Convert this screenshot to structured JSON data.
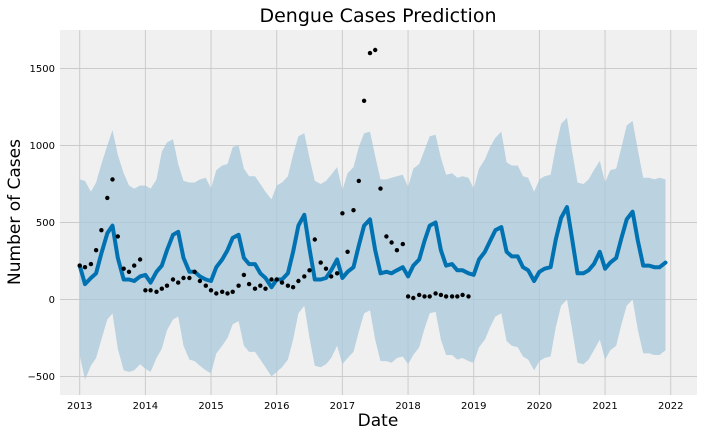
{
  "chart_data": {
    "type": "line",
    "title": "Dengue Cases Prediction",
    "xlabel": "Date",
    "ylabel": "Number of Cases",
    "xlim": [
      2012.7,
      2022.4
    ],
    "ylim": [
      -620,
      1750
    ],
    "x_ticks": [
      {
        "value": 2013,
        "label": "2013"
      },
      {
        "value": 2014,
        "label": "2014"
      },
      {
        "value": 2015,
        "label": "2015"
      },
      {
        "value": 2016,
        "label": "2016"
      },
      {
        "value": 2017,
        "label": "2017"
      },
      {
        "value": 2018,
        "label": "2018"
      },
      {
        "value": 2019,
        "label": "2019"
      },
      {
        "value": 2020,
        "label": "2020"
      },
      {
        "value": 2021,
        "label": "2021"
      },
      {
        "value": 2022,
        "label": "2022"
      }
    ],
    "y_ticks": [
      {
        "value": -500,
        "label": "−500"
      },
      {
        "value": 0,
        "label": "0"
      },
      {
        "value": 500,
        "label": "500"
      },
      {
        "value": 1000,
        "label": "1000"
      },
      {
        "value": 1500,
        "label": "1500"
      }
    ],
    "grid": true,
    "colors": {
      "background": "#f0f0f0",
      "grid": "#cbcbcb",
      "forecast_line": "#0072b2",
      "interval_band": "#a9c8db",
      "observed_points": "#000000"
    },
    "forecast": {
      "x": [
        2013.0,
        2013.08,
        2013.17,
        2013.25,
        2013.33,
        2013.42,
        2013.5,
        2013.58,
        2013.67,
        2013.75,
        2013.83,
        2013.92,
        2014.0,
        2014.08,
        2014.17,
        2014.25,
        2014.33,
        2014.42,
        2014.5,
        2014.58,
        2014.67,
        2014.75,
        2014.83,
        2014.92,
        2015.0,
        2015.08,
        2015.17,
        2015.25,
        2015.33,
        2015.42,
        2015.5,
        2015.58,
        2015.67,
        2015.75,
        2015.83,
        2015.92,
        2016.0,
        2016.08,
        2016.17,
        2016.25,
        2016.33,
        2016.42,
        2016.5,
        2016.58,
        2016.67,
        2016.75,
        2016.83,
        2016.92,
        2017.0,
        2017.08,
        2017.17,
        2017.25,
        2017.33,
        2017.42,
        2017.5,
        2017.58,
        2017.67,
        2017.75,
        2017.83,
        2017.92,
        2018.0,
        2018.08,
        2018.17,
        2018.25,
        2018.33,
        2018.42,
        2018.5,
        2018.58,
        2018.67,
        2018.75,
        2018.83,
        2018.92,
        2019.0,
        2019.08,
        2019.17,
        2019.25,
        2019.33,
        2019.42,
        2019.5,
        2019.58,
        2019.67,
        2019.75,
        2019.83,
        2019.92,
        2020.0,
        2020.08,
        2020.17,
        2020.25,
        2020.33,
        2020.42,
        2020.5,
        2020.58,
        2020.67,
        2020.75,
        2020.83,
        2020.92,
        2021.0,
        2021.08,
        2021.17,
        2021.25,
        2021.33,
        2021.42,
        2021.5,
        2021.58,
        2021.67,
        2021.75,
        2021.83,
        2021.92
      ],
      "yhat": [
        220,
        100,
        140,
        170,
        300,
        430,
        480,
        270,
        130,
        130,
        120,
        150,
        160,
        110,
        180,
        220,
        320,
        420,
        440,
        270,
        180,
        180,
        150,
        130,
        120,
        210,
        260,
        320,
        400,
        420,
        270,
        230,
        230,
        170,
        140,
        80,
        130,
        130,
        170,
        310,
        480,
        550,
        330,
        130,
        130,
        140,
        190,
        260,
        140,
        180,
        210,
        350,
        480,
        520,
        320,
        170,
        180,
        170,
        190,
        210,
        150,
        220,
        260,
        380,
        480,
        500,
        320,
        220,
        230,
        190,
        190,
        170,
        160,
        260,
        310,
        380,
        450,
        470,
        310,
        280,
        280,
        210,
        190,
        120,
        180,
        200,
        210,
        390,
        530,
        600,
        390,
        170,
        170,
        190,
        230,
        310,
        200,
        240,
        270,
        400,
        520,
        570,
        380,
        220,
        220,
        210,
        210,
        240
      ],
      "yhat_upper": [
        780,
        770,
        700,
        760,
        880,
        1000,
        1100,
        940,
        820,
        740,
        720,
        740,
        740,
        720,
        780,
        960,
        1020,
        1040,
        880,
        770,
        760,
        760,
        780,
        790,
        720,
        840,
        870,
        880,
        990,
        1000,
        850,
        800,
        800,
        750,
        700,
        650,
        740,
        760,
        800,
        940,
        1060,
        1080,
        920,
        770,
        750,
        770,
        810,
        860,
        710,
        820,
        860,
        990,
        1080,
        1090,
        930,
        780,
        780,
        790,
        800,
        810,
        730,
        850,
        880,
        970,
        1060,
        1070,
        920,
        810,
        820,
        790,
        800,
        790,
        720,
        850,
        910,
        990,
        1050,
        1090,
        890,
        870,
        870,
        800,
        790,
        700,
        780,
        800,
        810,
        990,
        1140,
        1180,
        960,
        760,
        750,
        780,
        840,
        900,
        760,
        840,
        850,
        990,
        1130,
        1160,
        970,
        790,
        790,
        780,
        790,
        780
      ],
      "yhat_lower": [
        -360,
        -520,
        -430,
        -380,
        -260,
        -130,
        -90,
        -320,
        -460,
        -470,
        -460,
        -420,
        -450,
        -470,
        -380,
        -320,
        -200,
        -130,
        -110,
        -300,
        -390,
        -400,
        -430,
        -460,
        -480,
        -350,
        -300,
        -250,
        -160,
        -140,
        -300,
        -340,
        -340,
        -390,
        -440,
        -500,
        -470,
        -440,
        -390,
        -260,
        -90,
        -40,
        -250,
        -430,
        -440,
        -420,
        -380,
        -300,
        -420,
        -380,
        -340,
        -210,
        -90,
        -70,
        -260,
        -400,
        -400,
        -410,
        -380,
        -370,
        -420,
        -360,
        -310,
        -190,
        -90,
        -80,
        -260,
        -360,
        -360,
        -390,
        -380,
        -400,
        -410,
        -310,
        -260,
        -180,
        -110,
        -90,
        -270,
        -300,
        -310,
        -370,
        -390,
        -460,
        -400,
        -380,
        -370,
        -180,
        -40,
        0,
        -200,
        -410,
        -420,
        -390,
        -330,
        -260,
        -390,
        -330,
        -300,
        -160,
        -40,
        0,
        -200,
        -350,
        -350,
        -360,
        -360,
        -330
      ]
    },
    "observed": {
      "x": [
        2013.0,
        2013.08,
        2013.17,
        2013.25,
        2013.33,
        2013.42,
        2013.5,
        2013.58,
        2013.67,
        2013.75,
        2013.83,
        2013.92,
        2014.0,
        2014.08,
        2014.17,
        2014.25,
        2014.33,
        2014.42,
        2014.5,
        2014.58,
        2014.67,
        2014.75,
        2014.83,
        2014.92,
        2015.0,
        2015.08,
        2015.17,
        2015.25,
        2015.33,
        2015.42,
        2015.5,
        2015.58,
        2015.67,
        2015.75,
        2015.83,
        2015.92,
        2016.0,
        2016.08,
        2016.17,
        2016.25,
        2016.33,
        2016.42,
        2016.5,
        2016.58,
        2016.67,
        2016.75,
        2016.83,
        2016.92,
        2017.0,
        2017.08,
        2017.17,
        2017.25,
        2017.33,
        2017.42,
        2017.5,
        2017.58,
        2017.67,
        2017.75,
        2017.83,
        2017.92,
        2018.0,
        2018.08,
        2018.17,
        2018.25,
        2018.33,
        2018.42,
        2018.5,
        2018.58,
        2018.67,
        2018.75,
        2018.83,
        2018.92
      ],
      "y": [
        220,
        210,
        230,
        320,
        450,
        660,
        780,
        410,
        200,
        180,
        220,
        260,
        60,
        60,
        50,
        70,
        90,
        130,
        110,
        140,
        140,
        180,
        120,
        90,
        60,
        40,
        50,
        40,
        50,
        90,
        160,
        100,
        70,
        90,
        70,
        130,
        130,
        110,
        90,
        80,
        120,
        150,
        190,
        390,
        240,
        200,
        150,
        170,
        560,
        310,
        580,
        770,
        1290,
        1600,
        1620,
        720,
        410,
        370,
        320,
        360,
        20,
        10,
        30,
        20,
        20,
        40,
        30,
        20,
        20,
        20,
        30,
        20
      ]
    }
  }
}
